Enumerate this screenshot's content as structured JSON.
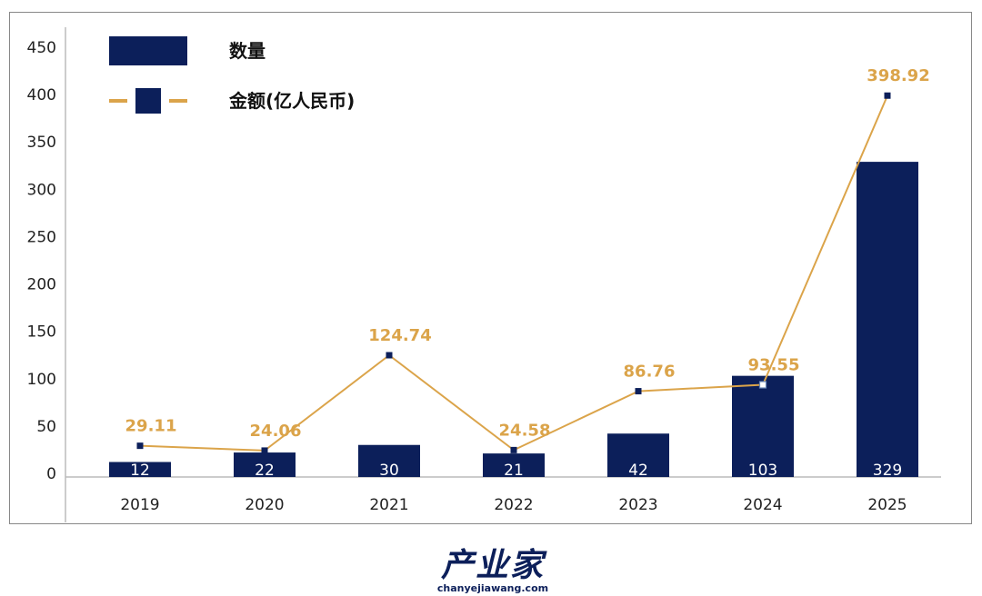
{
  "chart_data": {
    "type": "bar",
    "categories": [
      "2019",
      "2020",
      "2021",
      "2022",
      "2023",
      "2024",
      "2025"
    ],
    "series": [
      {
        "name": "数量",
        "type": "bar",
        "values": [
          12,
          22,
          30,
          21,
          42,
          103,
          329
        ],
        "color": "#0c1f5a"
      },
      {
        "name": "金额(亿人民币)",
        "type": "line",
        "values": [
          29.11,
          24.06,
          124.74,
          24.58,
          86.76,
          93.55,
          398.92
        ],
        "color": "#dba44a",
        "marker_color": "#0c1f5a"
      }
    ],
    "ylim": [
      0,
      450
    ],
    "yticks": [
      0,
      50,
      100,
      150,
      200,
      250,
      300,
      350,
      400,
      450
    ],
    "legend": "top-left",
    "grid": false
  },
  "logo": {
    "name": "产业家",
    "url_text": "chanyejiawang.com"
  }
}
